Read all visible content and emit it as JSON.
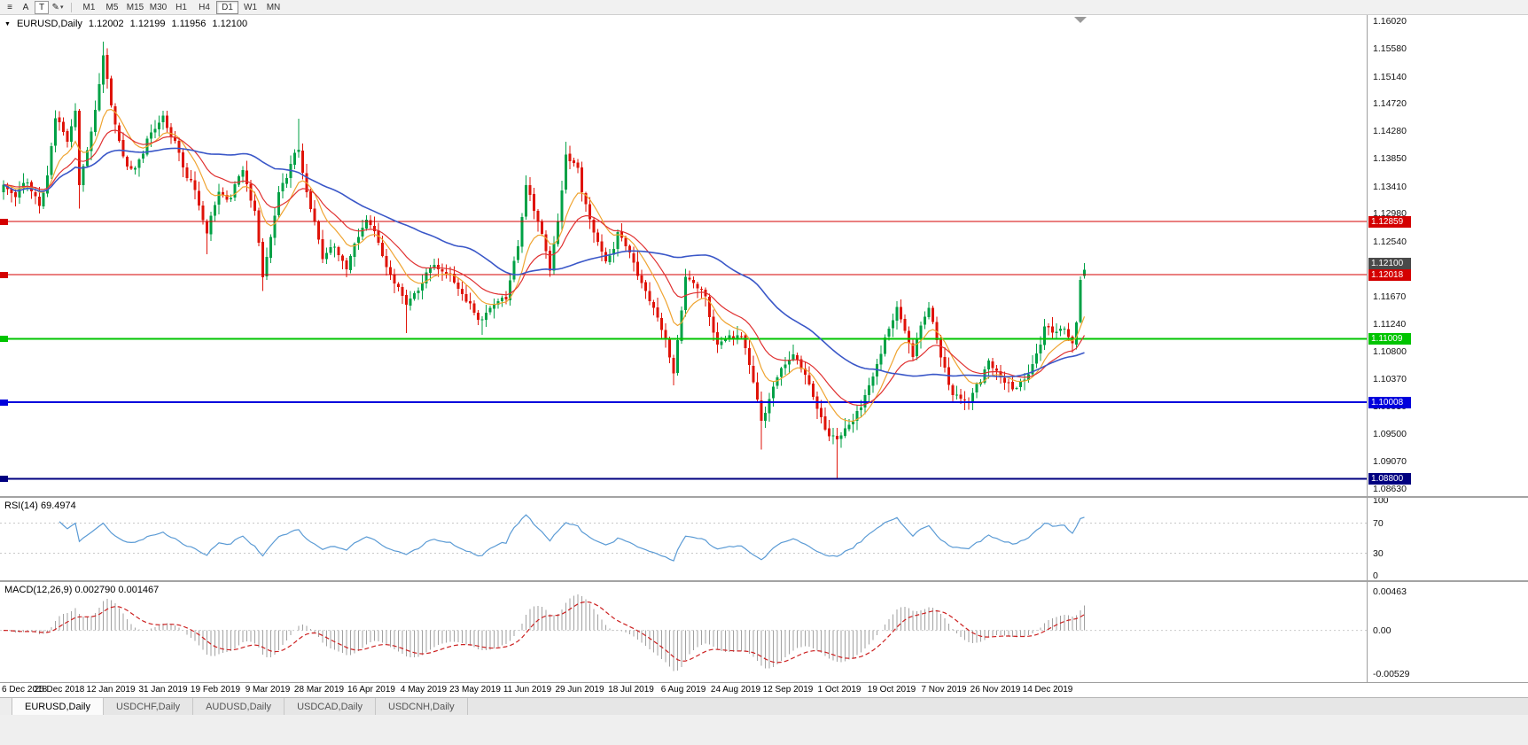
{
  "toolbar": {
    "font_a_label": "A",
    "text_t_label": "T",
    "icons": {
      "menu": "≡",
      "cursor": "✎",
      "dropdown": "▾"
    },
    "timeframes": [
      {
        "label": "M1"
      },
      {
        "label": "M5"
      },
      {
        "label": "M15"
      },
      {
        "label": "M30"
      },
      {
        "label": "H1"
      },
      {
        "label": "H4"
      },
      {
        "label": "D1",
        "active": true
      },
      {
        "label": "W1"
      },
      {
        "label": "MN"
      }
    ]
  },
  "chart": {
    "collapse_icon": "▼",
    "symbol_label": "EURUSD,Daily",
    "ohlc": {
      "open": "1.12002",
      "high": "1.12199",
      "low": "1.11956",
      "close": "1.12100"
    },
    "price_axis_labels": [
      "1.16020",
      "1.15580",
      "1.15140",
      "1.14720",
      "1.14280",
      "1.13850",
      "1.13410",
      "1.12980",
      "1.12540",
      "1.12100",
      "1.11670",
      "1.11240",
      "1.10800",
      "1.10370",
      "1.09930",
      "1.09500",
      "1.09070",
      "1.08630"
    ],
    "current_price_tag": {
      "price": 1.121,
      "label": "1.12100",
      "bg": "#4a4a4a",
      "fg": "#ffffff"
    }
  },
  "rsi": {
    "label": "RSI(14) 69.4974",
    "period": 14,
    "value": 69.4974,
    "levels": [
      70,
      30
    ],
    "axis_labels": [
      {
        "text": "100",
        "value": 100
      },
      {
        "text": "70",
        "value": 70
      },
      {
        "text": "30",
        "value": 30
      },
      {
        "text": "0",
        "value": 0
      }
    ]
  },
  "macd": {
    "label": "MACD(12,26,9) 0.002790 0.001467",
    "fast": 12,
    "slow": 26,
    "signal": 9,
    "value": 0.00279,
    "signal_value": 0.001467,
    "axis_labels": [
      {
        "text": "0.00463",
        "value": 0.00463
      },
      {
        "text": "0.00",
        "value": 0
      },
      {
        "text": "-0.00529",
        "value": -0.00529
      }
    ]
  },
  "tabs": {
    "items": [
      {
        "label": "EURUSD,Daily",
        "active": true
      },
      {
        "label": "USDCHF,Daily"
      },
      {
        "label": "AUDUSD,Daily"
      },
      {
        "label": "USDCAD,Daily"
      },
      {
        "label": "USDCNH,Daily"
      }
    ]
  },
  "colors": {
    "bull": "#00A146",
    "bear": "#DF1308",
    "ma_fast": "#EFA431",
    "ma_mid": "#E03131",
    "ma_slow": "#3A57C8",
    "rsi_line": "#5B9BD5",
    "macd_hist": "#A0A0A0",
    "macd_signal": "#CC2020"
  },
  "chart_data": {
    "type": "candlestick",
    "symbol": "EURUSD",
    "timeframe": "Daily",
    "bars": 272,
    "seed": 11,
    "price_scale": {
      "top": 1.16118,
      "bottom": 1.08524
    },
    "x_labels": [
      "6 Dec 2018",
      "25 Dec 2018",
      "12 Jan 2019",
      "31 Jan 2019",
      "19 Feb 2019",
      "9 Mar 2019",
      "28 Mar 2019",
      "16 Apr 2019",
      "4 May 2019",
      "23 May 2019",
      "11 Jun 2019",
      "29 Jun 2019",
      "18 Jul 2019",
      "6 Aug 2019",
      "24 Aug 2019",
      "12 Sep 2019",
      "1 Oct 2019",
      "19 Oct 2019",
      "7 Nov 2019",
      "26 Nov 2019",
      "14 Dec 2019"
    ],
    "keyframes": [
      [
        0,
        1.1344
      ],
      [
        3,
        1.1322
      ],
      [
        6,
        1.1352
      ],
      [
        9,
        1.131
      ],
      [
        11,
        1.1355
      ],
      [
        13,
        1.1448
      ],
      [
        16,
        1.142
      ],
      [
        18,
        1.1465
      ],
      [
        19,
        1.1346
      ],
      [
        21,
        1.1402
      ],
      [
        23,
        1.146
      ],
      [
        25,
        1.1545
      ],
      [
        27,
        1.1462
      ],
      [
        30,
        1.139
      ],
      [
        33,
        1.1362
      ],
      [
        36,
        1.1418
      ],
      [
        40,
        1.1448
      ],
      [
        43,
        1.1405
      ],
      [
        47,
        1.1352
      ],
      [
        51,
        1.127
      ],
      [
        54,
        1.1336
      ],
      [
        57,
        1.1322
      ],
      [
        60,
        1.1368
      ],
      [
        63,
        1.1305
      ],
      [
        65,
        1.1196
      ],
      [
        69,
        1.133
      ],
      [
        72,
        1.138
      ],
      [
        74,
        1.1402
      ],
      [
        77,
        1.1302
      ],
      [
        80,
        1.1226
      ],
      [
        83,
        1.1246
      ],
      [
        86,
        1.1216
      ],
      [
        91,
        1.1298
      ],
      [
        95,
        1.1236
      ],
      [
        98,
        1.1182
      ],
      [
        101,
        1.1152
      ],
      [
        104,
        1.1182
      ],
      [
        106,
        1.1202
      ],
      [
        110,
        1.1216
      ],
      [
        113,
        1.1186
      ],
      [
        116,
        1.1158
      ],
      [
        120,
        1.1132
      ],
      [
        123,
        1.1156
      ],
      [
        126,
        1.117
      ],
      [
        129,
        1.1252
      ],
      [
        131,
        1.1334
      ],
      [
        134,
        1.1292
      ],
      [
        137,
        1.1205
      ],
      [
        139,
        1.129
      ],
      [
        141,
        1.1392
      ],
      [
        144,
        1.1372
      ],
      [
        147,
        1.1282
      ],
      [
        151,
        1.1212
      ],
      [
        154,
        1.1272
      ],
      [
        158,
        1.1226
      ],
      [
        163,
        1.1148
      ],
      [
        166,
        1.1102
      ],
      [
        168,
        1.1042
      ],
      [
        171,
        1.1202
      ],
      [
        174,
        1.1182
      ],
      [
        176,
        1.1172
      ],
      [
        179,
        1.1092
      ],
      [
        182,
        1.1106
      ],
      [
        185,
        1.1098
      ],
      [
        188,
        1.1042
      ],
      [
        190,
        1.0972
      ],
      [
        193,
        1.1032
      ],
      [
        198,
        1.1072
      ],
      [
        201,
        1.1042
      ],
      [
        203,
        1.1016
      ],
      [
        206,
        1.0962
      ],
      [
        209,
        1.0932
      ],
      [
        212,
        1.0966
      ],
      [
        215,
        1.0992
      ],
      [
        217,
        1.1026
      ],
      [
        220,
        1.1072
      ],
      [
        224,
        1.1152
      ],
      [
        226,
        1.1122
      ],
      [
        228,
        1.1082
      ],
      [
        230,
        1.1116
      ],
      [
        232,
        1.1152
      ],
      [
        235,
        1.1072
      ],
      [
        238,
        1.1018
      ],
      [
        242,
        1.1006
      ],
      [
        245,
        1.1032
      ],
      [
        247,
        1.1062
      ],
      [
        250,
        1.1042
      ],
      [
        253,
        1.1018
      ],
      [
        256,
        1.1042
      ],
      [
        258,
        1.1062
      ],
      [
        261,
        1.1122
      ],
      [
        263,
        1.1118
      ],
      [
        266,
        1.1112
      ],
      [
        268,
        1.109
      ],
      [
        269,
        1.1126
      ],
      [
        270,
        1.1192
      ],
      [
        271,
        1.121
      ]
    ],
    "spikes": [
      {
        "b": 19,
        "low": 1.1306
      },
      {
        "b": 24,
        "high": 1.152
      },
      {
        "b": 25,
        "high": 1.157
      },
      {
        "b": 51,
        "low": 1.1234
      },
      {
        "b": 65,
        "low": 1.1176
      },
      {
        "b": 74,
        "high": 1.1448
      },
      {
        "b": 101,
        "low": 1.111
      },
      {
        "b": 120,
        "low": 1.1107
      },
      {
        "b": 141,
        "high": 1.1412
      },
      {
        "b": 168,
        "low": 1.1027
      },
      {
        "b": 190,
        "low": 1.0926
      },
      {
        "b": 209,
        "low": 1.0879
      },
      {
        "b": 242,
        "low": 1.0989
      },
      {
        "b": 270,
        "high": 1.1199
      }
    ],
    "last_bar": {
      "open": 1.12002,
      "high": 1.12199,
      "low": 1.11956,
      "close": 1.121
    },
    "h_lines": [
      {
        "price": 1.12859,
        "label": "1.12859",
        "color": "#D40000",
        "width": 1,
        "left_marker": true
      },
      {
        "price": 1.12018,
        "label": "1.12018",
        "color": "#D40000",
        "width": 1,
        "left_marker": true
      },
      {
        "price": 1.11009,
        "label": "1.11009",
        "color": "#00C400",
        "width": 2,
        "left_marker": true
      },
      {
        "price": 1.10008,
        "label": "1.10008",
        "color": "#0000DC",
        "width": 2,
        "left_marker": true
      },
      {
        "price": 1.088,
        "label": "1.08800",
        "color": "#000080",
        "width": 2,
        "left_marker": true
      }
    ],
    "moving_averages": [
      {
        "type": "ema",
        "window": 10,
        "color": "#EFA431"
      },
      {
        "type": "ema",
        "window": 21,
        "color": "#E03131"
      },
      {
        "type": "sma",
        "window": 50,
        "color": "#3A57C8"
      }
    ],
    "rsi_period": 14,
    "macd_params": [
      12,
      26,
      9
    ]
  }
}
